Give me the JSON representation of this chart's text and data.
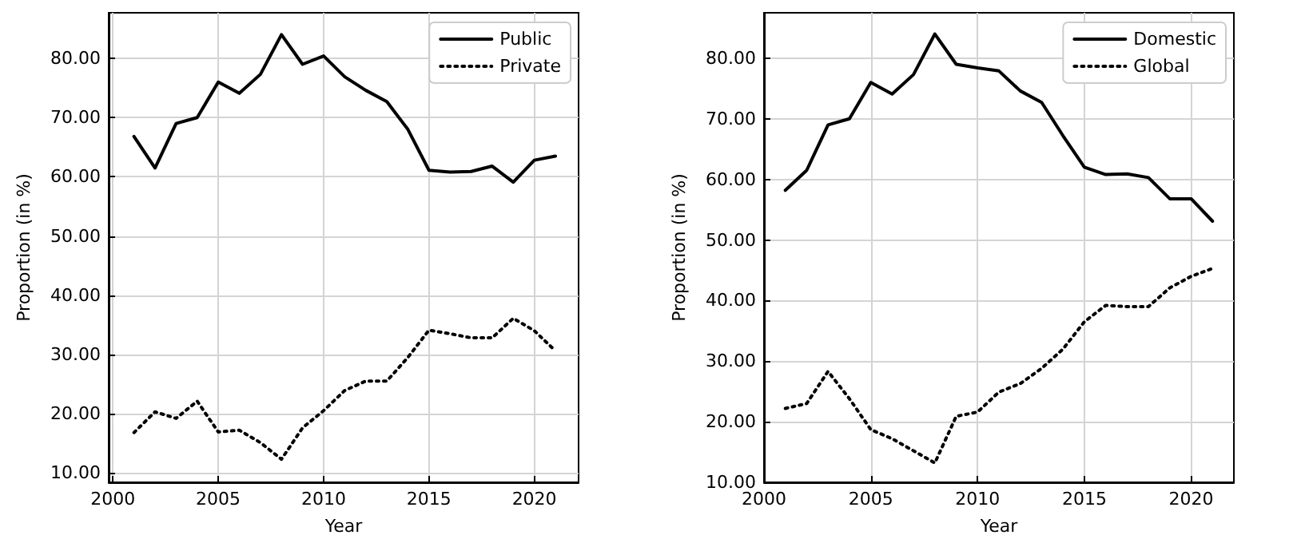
{
  "chart_data": [
    {
      "type": "line",
      "xlabel": "Year",
      "ylabel": "Proportion (in %)",
      "x": [
        2001,
        2002,
        2003,
        2004,
        2005,
        2006,
        2007,
        2008,
        2009,
        2010,
        2011,
        2012,
        2013,
        2014,
        2015,
        2016,
        2017,
        2018,
        2019,
        2020,
        2021
      ],
      "series": [
        {
          "name": "Public",
          "color": "#000000",
          "line_style": "solid",
          "values": [
            66.8,
            61.5,
            69,
            70,
            76,
            74.1,
            77.3,
            84,
            79,
            80.4,
            76.9,
            74.6,
            72.7,
            68,
            61.1,
            60.8,
            60.9,
            61.8,
            59.1,
            62.8,
            63.5
          ]
        },
        {
          "name": "Private",
          "color": "#000000",
          "line_style": "dotted",
          "values": [
            16.8,
            20.3,
            19.2,
            22.1,
            16.9,
            17.2,
            15.1,
            12.3,
            17.6,
            20.5,
            23.9,
            25.5,
            25.5,
            29.5,
            34.1,
            33.5,
            32.8,
            32.8,
            36.1,
            34,
            30.6
          ]
        }
      ],
      "xlim": [
        1999.8,
        2022.1
      ],
      "xticks": [
        2000,
        2005,
        2010,
        2015,
        2020
      ],
      "ylim": [
        8.4,
        87.7
      ],
      "yticks": [
        {
          "value": 10,
          "label": "10.00"
        },
        {
          "value": 20,
          "label": "20.00"
        },
        {
          "value": 30,
          "label": "30.00"
        },
        {
          "value": 40,
          "label": "40.00"
        },
        {
          "value": 50,
          "label": "50.00"
        },
        {
          "value": 60,
          "label": "60.00"
        },
        {
          "value": 70,
          "label": "70.00"
        },
        {
          "value": 80,
          "label": "80.00"
        }
      ],
      "grid": true,
      "legend": "top right",
      "marker": "none"
    },
    {
      "type": "line",
      "xlabel": "Year",
      "ylabel": "Proportion (in %)",
      "x": [
        2001,
        2002,
        2003,
        2004,
        2005,
        2006,
        2007,
        2008,
        2009,
        2010,
        2011,
        2012,
        2013,
        2014,
        2015,
        2016,
        2017,
        2018,
        2019,
        2020,
        2021
      ],
      "series": [
        {
          "name": "Domestic",
          "color": "#000000",
          "line_style": "solid",
          "values": [
            58.2,
            61.5,
            69,
            70,
            76,
            74.1,
            77.3,
            84,
            79,
            78.4,
            77.9,
            74.6,
            72.7,
            67.2,
            62,
            60.8,
            60.9,
            60.3,
            56.8,
            56.8,
            53.1
          ]
        },
        {
          "name": "Global",
          "color": "#000000",
          "line_style": "dotted",
          "values": [
            22.2,
            23,
            28.3,
            23.8,
            18.7,
            17.2,
            15.2,
            13.2,
            20.9,
            21.6,
            24.9,
            26.3,
            28.8,
            32,
            36.5,
            39.2,
            39,
            39,
            42.1,
            44,
            45.3
          ]
        }
      ],
      "xlim": [
        2000,
        2022.0
      ],
      "xticks": [
        2000,
        2005,
        2010,
        2015,
        2020
      ],
      "ylim": [
        10,
        87.5
      ],
      "yticks": [
        {
          "value": 10,
          "label": "10.00"
        },
        {
          "value": 20,
          "label": "20.00"
        },
        {
          "value": 30,
          "label": "30.00"
        },
        {
          "value": 40,
          "label": "40.00"
        },
        {
          "value": 50,
          "label": "50.00"
        },
        {
          "value": 60,
          "label": "60.00"
        },
        {
          "value": 70,
          "label": "70.00"
        },
        {
          "value": 80,
          "label": "80.00"
        }
      ],
      "grid": true,
      "legend": "top right",
      "marker": "none"
    }
  ]
}
